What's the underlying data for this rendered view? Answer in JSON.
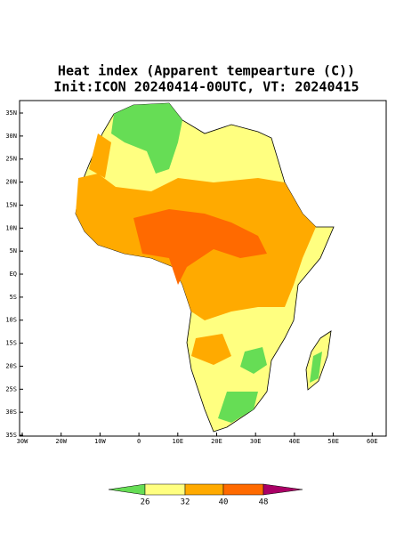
{
  "title": "Heat index (Apparent tempearture (C))",
  "subtitle": "Init:ICON 20240414-00UTC, VT: 20240415",
  "lat_labels": [
    "35N",
    "30N",
    "25N",
    "20N",
    "15N",
    "10N",
    "5N",
    "EQ",
    "5S",
    "10S",
    "15S",
    "20S",
    "25S",
    "30S",
    "35S"
  ],
  "lon_labels": [
    "30W",
    "20W",
    "10W",
    "0",
    "10E",
    "20E",
    "30E",
    "40E",
    "50E",
    "60E"
  ],
  "colorbar": {
    "ticks": [
      "26",
      "32",
      "40",
      "48"
    ]
  }
}
